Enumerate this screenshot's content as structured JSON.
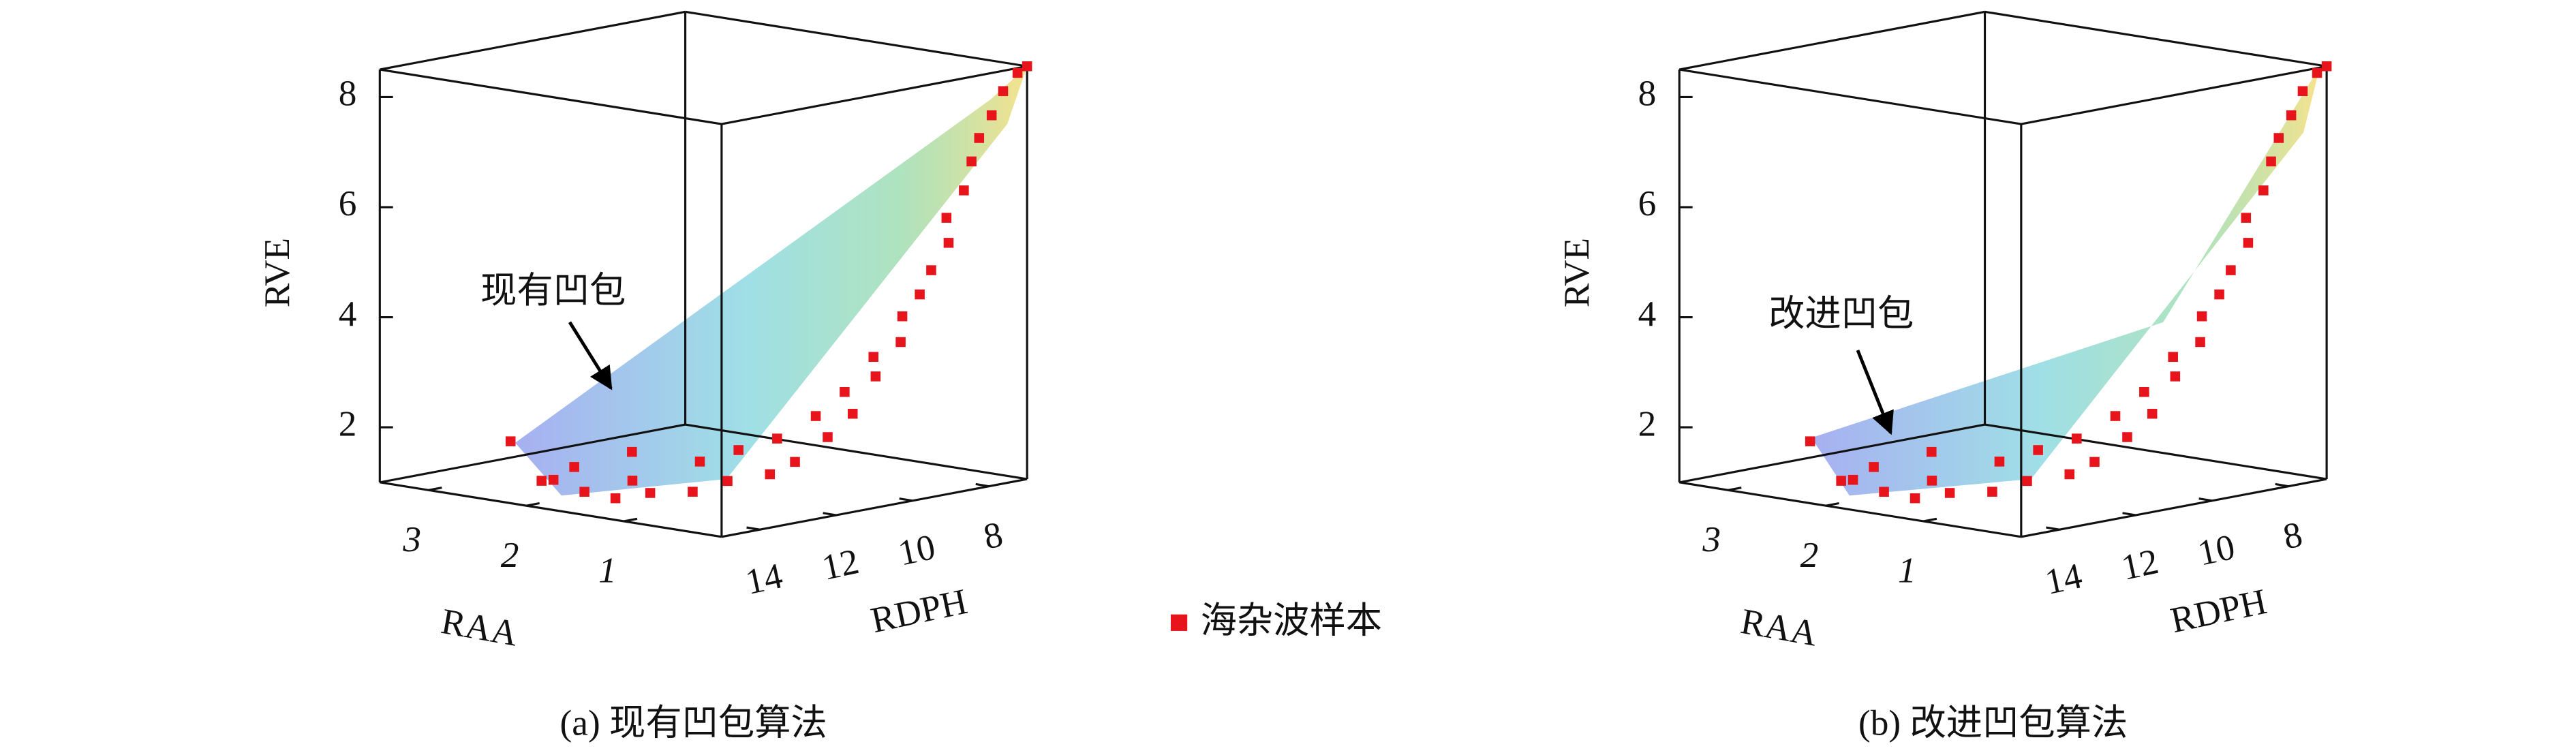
{
  "legend": {
    "label": "海杂波样本",
    "color": "#e8141c"
  },
  "chart_data": [
    {
      "type": "scatter3d",
      "caption": "(a) 现有凹包算法",
      "annotation": "现有凹包",
      "xlabel": "RDPH",
      "ylabel": "RAA",
      "zlabel": "RVE",
      "xlim": [
        7,
        15
      ],
      "ylim": [
        0,
        3.5
      ],
      "zlim": [
        1,
        8.5
      ],
      "xticks": [
        8,
        10,
        12,
        14
      ],
      "yticks": [
        1,
        2,
        3
      ],
      "zticks": [
        2,
        4,
        6,
        8
      ],
      "x": [
        14.9,
        14.8,
        14.5,
        14.6,
        14.2,
        14.0,
        13.8,
        13.5,
        13.2,
        13.0,
        12.8,
        12.5,
        12.2,
        12.0,
        11.8,
        11.5,
        11.2,
        11.0,
        10.8,
        10.5,
        10.2,
        10.0,
        9.8,
        9.5,
        9.3,
        9.0,
        8.8,
        8.6,
        8.4,
        8.2,
        8.0,
        7.8,
        7.5,
        7.2,
        7.0
      ],
      "y": [
        2.2,
        1.8,
        1.6,
        2.0,
        1.4,
        1.9,
        1.2,
        1.5,
        1.0,
        1.7,
        0.8,
        1.2,
        0.6,
        1.0,
        0.5,
        0.8,
        0.4,
        0.6,
        0.3,
        0.5,
        0.3,
        0.4,
        0.2,
        0.3,
        0.2,
        0.2,
        0.1,
        0.2,
        0.1,
        0.1,
        0.1,
        0.05,
        0.05,
        0.02,
        0
      ],
      "z": [
        2.1,
        1.5,
        1.3,
        1.4,
        1.2,
        1.6,
        1.3,
        1.4,
        1.3,
        1.8,
        1.5,
        1.7,
        1.6,
        1.9,
        1.8,
        2.1,
        2.2,
        2.5,
        2.6,
        2.9,
        3.2,
        3.5,
        3.8,
        4.2,
        4.6,
        5.0,
        5.5,
        5.9,
        6.4,
        6.9,
        7.3,
        7.7,
        8.1,
        8.4,
        8.5
      ]
    },
    {
      "type": "scatter3d",
      "caption": "(b) 改进凹包算法",
      "annotation": "改进凹包",
      "xlabel": "RDPH",
      "ylabel": "RAA",
      "zlabel": "RVE",
      "xlim": [
        7,
        15
      ],
      "ylim": [
        0,
        3.5
      ],
      "zlim": [
        1,
        8.5
      ],
      "xticks": [
        8,
        10,
        12,
        14
      ],
      "yticks": [
        1,
        2,
        3
      ],
      "zticks": [
        2,
        4,
        6,
        8
      ],
      "x": [
        14.9,
        14.8,
        14.5,
        14.6,
        14.2,
        14.0,
        13.8,
        13.5,
        13.2,
        13.0,
        12.8,
        12.5,
        12.2,
        12.0,
        11.8,
        11.5,
        11.2,
        11.0,
        10.8,
        10.5,
        10.2,
        10.0,
        9.8,
        9.5,
        9.3,
        9.0,
        8.8,
        8.6,
        8.4,
        8.2,
        8.0,
        7.8,
        7.5,
        7.2,
        7.0
      ],
      "y": [
        2.2,
        1.8,
        1.6,
        2.0,
        1.4,
        1.9,
        1.2,
        1.5,
        1.0,
        1.7,
        0.8,
        1.2,
        0.6,
        1.0,
        0.5,
        0.8,
        0.4,
        0.6,
        0.3,
        0.5,
        0.3,
        0.4,
        0.2,
        0.3,
        0.2,
        0.2,
        0.1,
        0.2,
        0.1,
        0.1,
        0.1,
        0.05,
        0.05,
        0.02,
        0
      ],
      "z": [
        2.1,
        1.5,
        1.3,
        1.4,
        1.2,
        1.6,
        1.3,
        1.4,
        1.3,
        1.8,
        1.5,
        1.7,
        1.6,
        1.9,
        1.8,
        2.1,
        2.2,
        2.5,
        2.6,
        2.9,
        3.2,
        3.5,
        3.8,
        4.2,
        4.6,
        5.0,
        5.5,
        5.9,
        6.4,
        6.9,
        7.3,
        7.7,
        8.1,
        8.4,
        8.5
      ]
    }
  ]
}
